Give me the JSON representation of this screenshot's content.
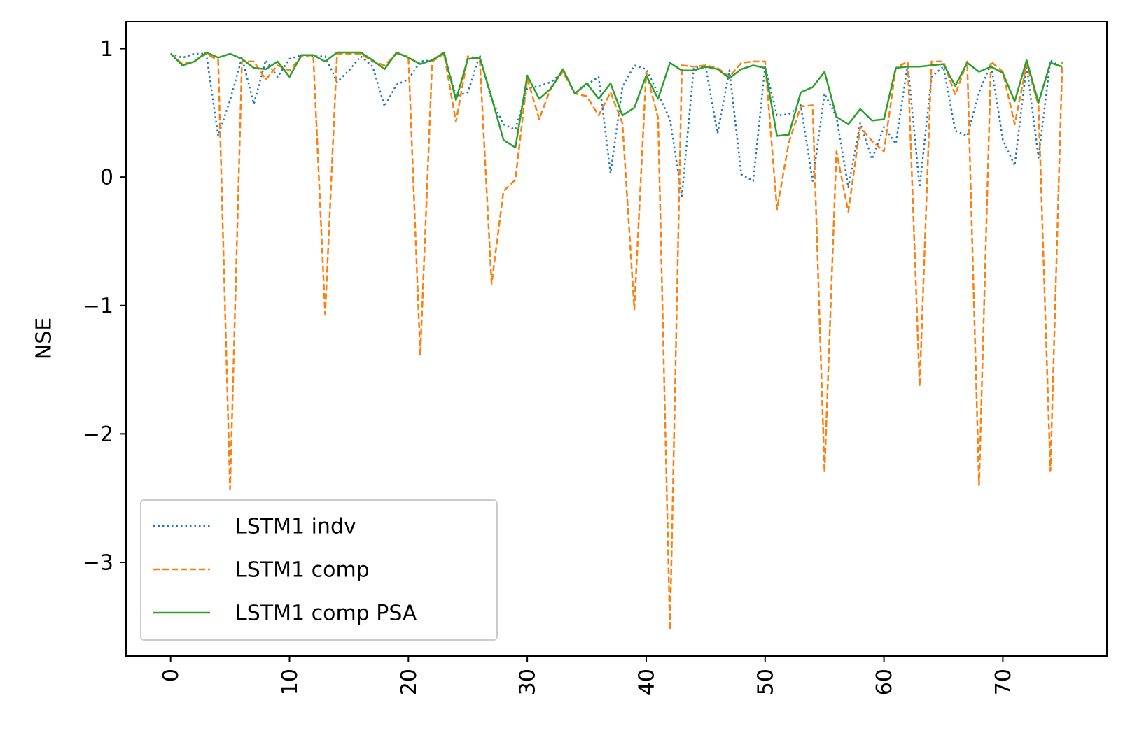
{
  "chart_data": {
    "type": "line",
    "xlabel": "",
    "ylabel": "NSE",
    "xlim": [
      -3.75,
      78.75
    ],
    "ylim": [
      -3.73,
      1.21
    ],
    "x_ticks": [
      "0",
      "10",
      "20",
      "30",
      "40",
      "50",
      "60",
      "70"
    ],
    "y_ticks": [
      "1",
      "0",
      "−1",
      "−2",
      "−3"
    ],
    "legend_position": "lower-left",
    "grid": false,
    "x": [
      0,
      1,
      2,
      3,
      4,
      5,
      6,
      7,
      8,
      9,
      10,
      11,
      12,
      13,
      14,
      15,
      16,
      17,
      18,
      19,
      20,
      21,
      22,
      23,
      24,
      25,
      26,
      27,
      28,
      29,
      30,
      31,
      32,
      33,
      34,
      35,
      36,
      37,
      38,
      39,
      40,
      41,
      42,
      43,
      44,
      45,
      46,
      47,
      48,
      49,
      50,
      51,
      52,
      53,
      54,
      55,
      56,
      57,
      58,
      59,
      60,
      61,
      62,
      63,
      64,
      65,
      66,
      67,
      68,
      69,
      70,
      71,
      72,
      73,
      74,
      75
    ],
    "series": [
      {
        "name": "LSTM1 indv",
        "color": "#1f77b4",
        "style": "dotted",
        "values": [
          0.96,
          0.93,
          0.96,
          0.96,
          0.32,
          0.6,
          0.93,
          0.57,
          0.91,
          0.78,
          0.92,
          0.95,
          0.94,
          0.94,
          0.74,
          0.83,
          0.94,
          0.86,
          0.55,
          0.72,
          0.76,
          0.9,
          0.91,
          0.95,
          0.63,
          0.66,
          0.95,
          0.6,
          0.41,
          0.37,
          0.69,
          0.71,
          0.74,
          0.82,
          0.65,
          0.72,
          0.78,
          0.03,
          0.7,
          0.87,
          0.84,
          0.65,
          0.45,
          -0.15,
          0.85,
          0.86,
          0.34,
          0.83,
          0.02,
          -0.03,
          0.86,
          0.48,
          0.49,
          0.56,
          -0.03,
          0.65,
          0.47,
          -0.08,
          0.42,
          0.14,
          0.39,
          0.26,
          0.88,
          -0.08,
          0.78,
          0.86,
          0.36,
          0.32,
          0.66,
          0.88,
          0.29,
          0.09,
          0.87,
          0.15,
          0.91,
          0.85
        ]
      },
      {
        "name": "LSTM1 comp",
        "color": "#ff7f0e",
        "style": "dashed",
        "values": [
          0.96,
          0.88,
          0.9,
          0.96,
          0.91,
          -2.43,
          0.9,
          0.9,
          0.76,
          0.87,
          0.83,
          0.94,
          0.95,
          -1.07,
          0.96,
          0.96,
          0.96,
          0.9,
          0.87,
          0.96,
          0.94,
          -1.39,
          0.9,
          0.96,
          0.43,
          0.94,
          0.92,
          -0.83,
          -0.11,
          -0.02,
          0.77,
          0.45,
          0.7,
          0.82,
          0.65,
          0.63,
          0.48,
          0.66,
          0.42,
          -1.03,
          0.82,
          0.46,
          -3.53,
          0.87,
          0.86,
          0.87,
          0.85,
          0.78,
          0.89,
          0.9,
          0.9,
          -0.25,
          0.27,
          0.55,
          0.56,
          -2.3,
          0.2,
          -0.27,
          0.39,
          0.28,
          0.2,
          0.85,
          0.9,
          -1.63,
          0.9,
          0.9,
          0.64,
          0.9,
          -2.4,
          0.9,
          0.82,
          0.41,
          0.88,
          0.56,
          -2.29,
          0.9
        ]
      },
      {
        "name": "LSTM1 comp PSA",
        "color": "#2ca02c",
        "style": "solid",
        "values": [
          0.96,
          0.87,
          0.9,
          0.97,
          0.93,
          0.96,
          0.92,
          0.85,
          0.84,
          0.9,
          0.78,
          0.95,
          0.95,
          0.9,
          0.97,
          0.97,
          0.97,
          0.91,
          0.84,
          0.97,
          0.93,
          0.88,
          0.91,
          0.97,
          0.6,
          0.92,
          0.93,
          0.62,
          0.29,
          0.23,
          0.79,
          0.61,
          0.69,
          0.84,
          0.65,
          0.73,
          0.61,
          0.73,
          0.48,
          0.54,
          0.79,
          0.61,
          0.89,
          0.83,
          0.83,
          0.86,
          0.84,
          0.77,
          0.84,
          0.87,
          0.85,
          0.32,
          0.33,
          0.66,
          0.7,
          0.82,
          0.47,
          0.41,
          0.53,
          0.44,
          0.45,
          0.85,
          0.86,
          0.86,
          0.87,
          0.88,
          0.71,
          0.89,
          0.82,
          0.86,
          0.81,
          0.59,
          0.91,
          0.58,
          0.89,
          0.86
        ]
      }
    ]
  }
}
